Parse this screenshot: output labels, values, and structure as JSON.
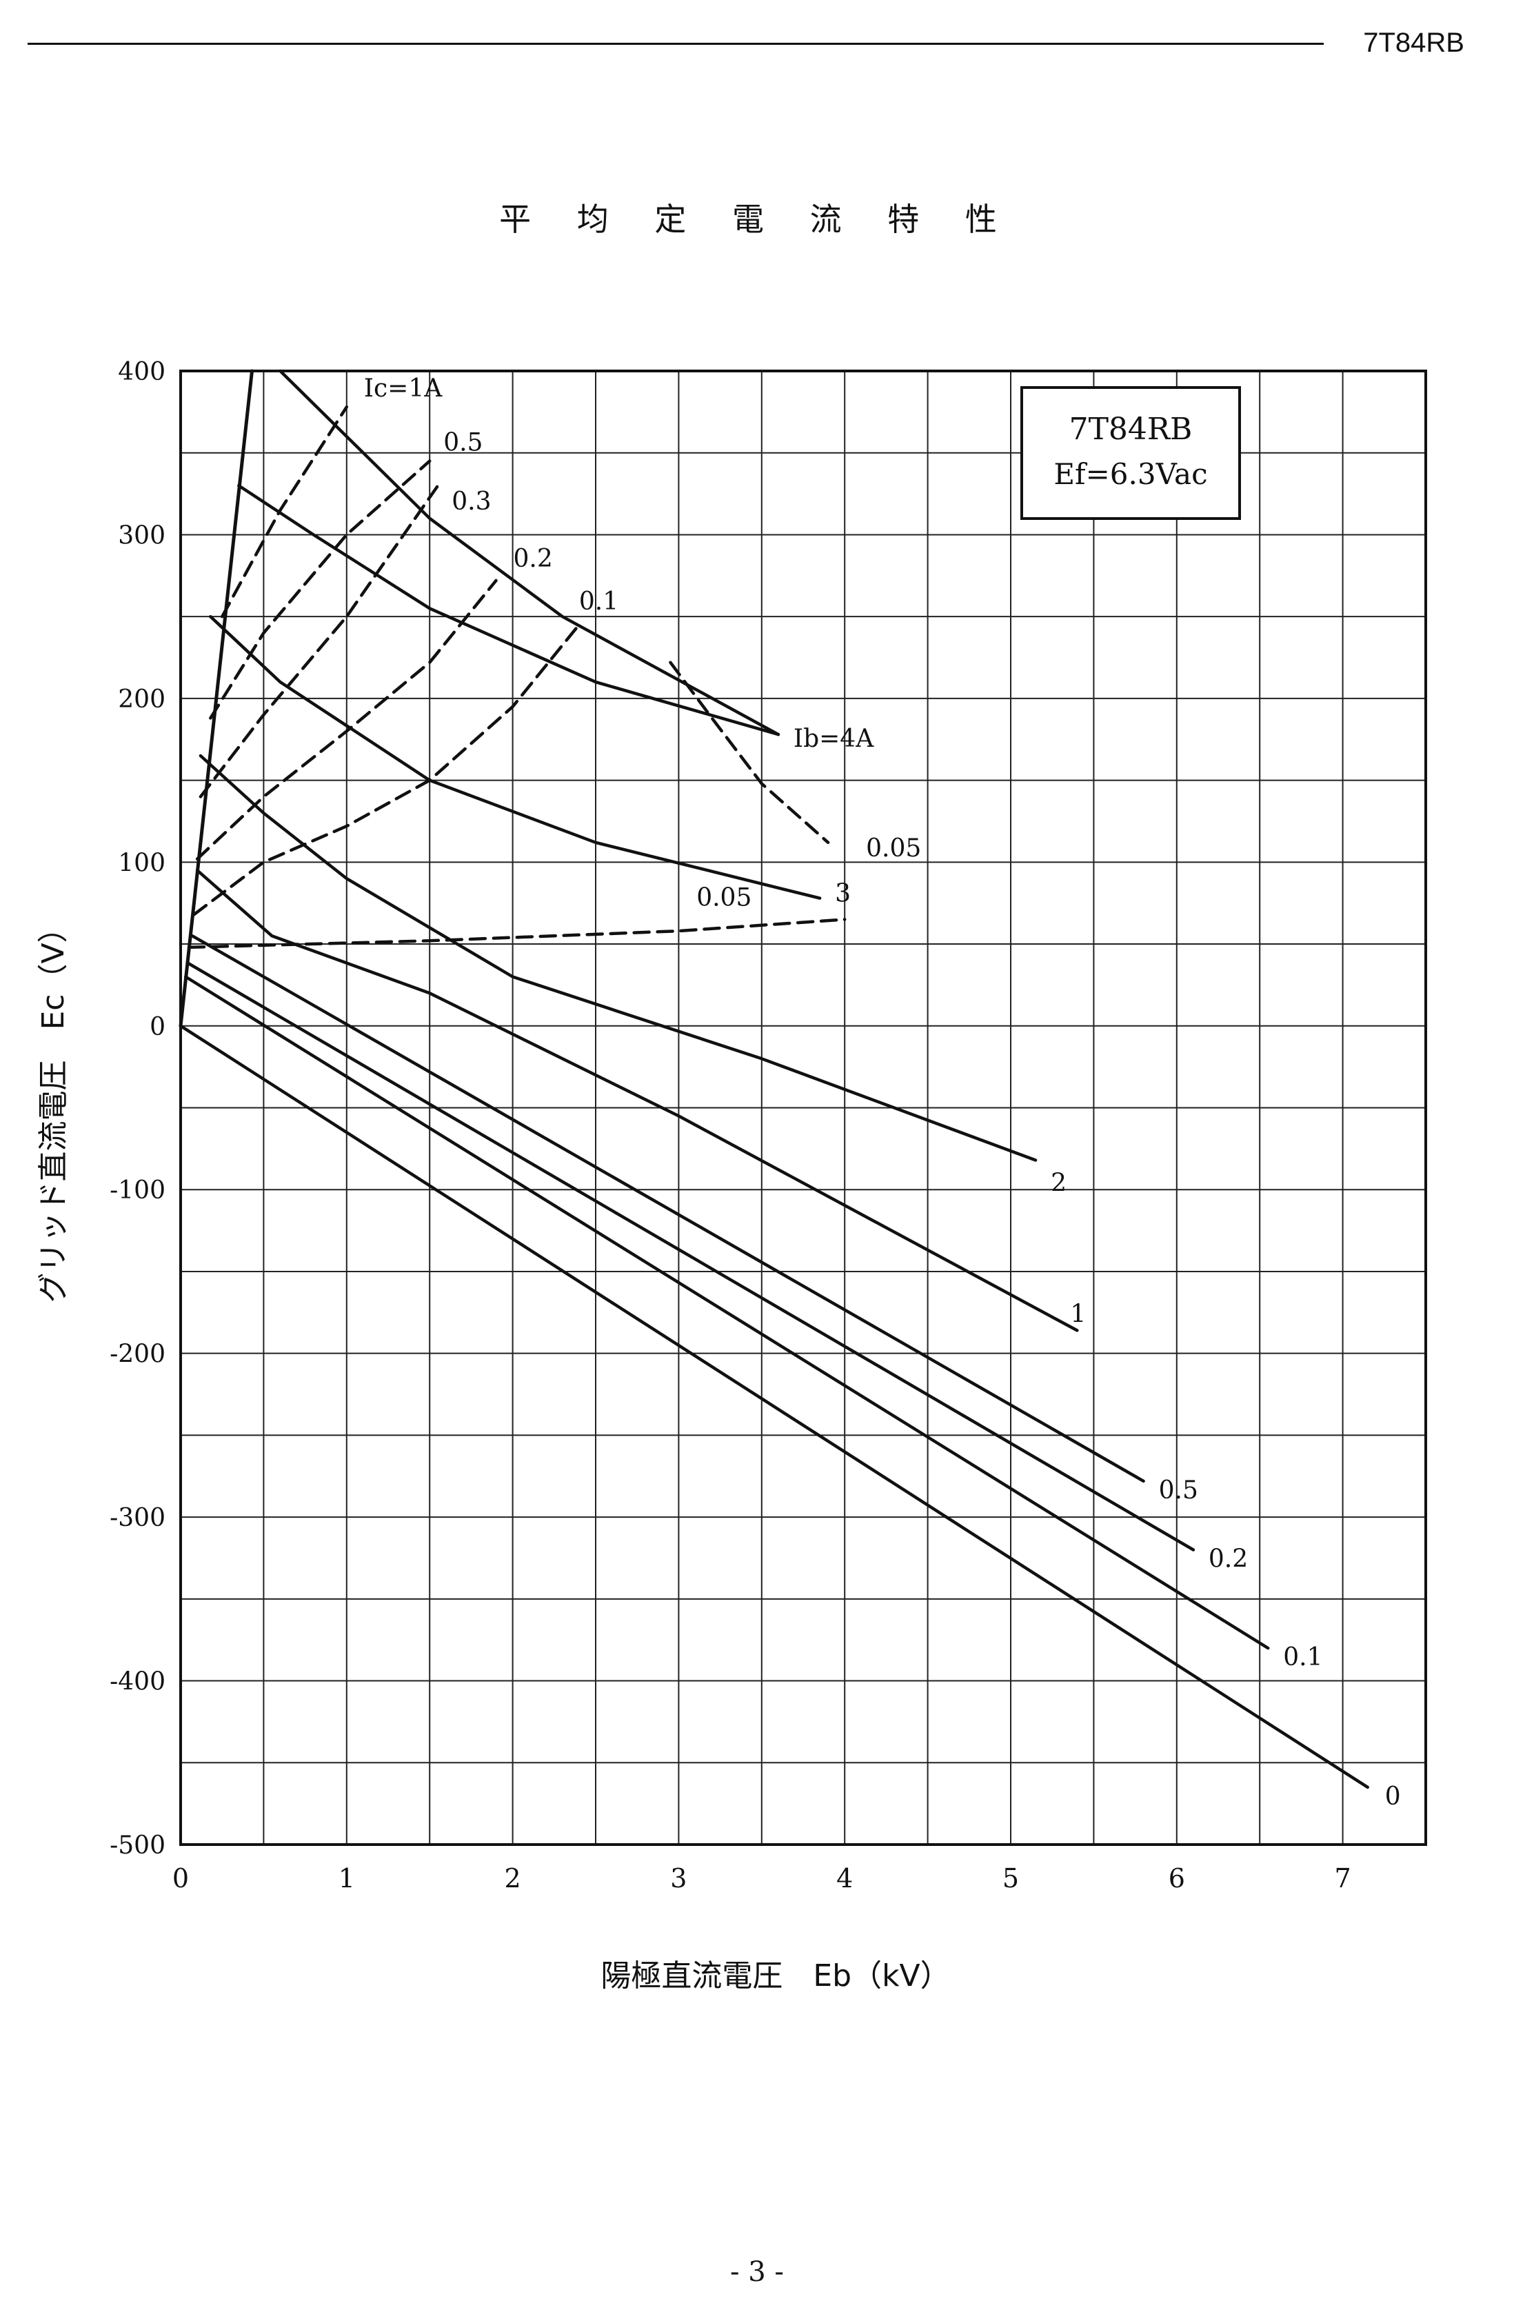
{
  "header": {
    "code": "7T84RB"
  },
  "footer": {
    "page": "- 3 -"
  },
  "chart_data": {
    "type": "line",
    "title": "平 均 定 電 流 特 性",
    "xlabel": "陽極直流電圧　Eb（kV）",
    "ylabel": "グリッド直流電圧　Ec（V）",
    "xlim": [
      0,
      7.5
    ],
    "ylim": [
      -500,
      400
    ],
    "xticks": [
      "0",
      "1",
      "2",
      "3",
      "4",
      "5",
      "6",
      "7"
    ],
    "yticks": [
      "400",
      "300",
      "200",
      "100",
      "0",
      "-100",
      "-200",
      "-300",
      "-400",
      "-500"
    ],
    "grid": true,
    "infobox": {
      "line1": "7T84RB",
      "line2": "Ef=6.3Vac"
    },
    "series": [
      {
        "name": "Ib=0 A",
        "label": "0",
        "kind": "plate",
        "points": [
          [
            0,
            0
          ],
          [
            7.15,
            -465
          ]
        ]
      },
      {
        "name": "Ib=0.1 A",
        "label": "0.1",
        "kind": "plate",
        "points": [
          [
            0.03,
            30
          ],
          [
            6.55,
            -380
          ]
        ]
      },
      {
        "name": "Ib=0.2 A",
        "label": "0.2",
        "kind": "plate",
        "points": [
          [
            0.05,
            38
          ],
          [
            6.1,
            -320
          ]
        ]
      },
      {
        "name": "Ib=0.5 A",
        "label": "0.5",
        "kind": "plate",
        "points": [
          [
            0.07,
            55
          ],
          [
            5.8,
            -278
          ]
        ]
      },
      {
        "name": "Ib=1 A",
        "label": "1",
        "kind": "plate",
        "points": [
          [
            0.1,
            95
          ],
          [
            0.55,
            55
          ],
          [
            1.5,
            20
          ],
          [
            3,
            -55
          ],
          [
            5.4,
            -186
          ]
        ]
      },
      {
        "name": "Ib=2 A",
        "label": "2",
        "kind": "plate",
        "points": [
          [
            0.12,
            165
          ],
          [
            0.5,
            130
          ],
          [
            1,
            90
          ],
          [
            2,
            30
          ],
          [
            3.5,
            -20
          ],
          [
            5.15,
            -82
          ]
        ]
      },
      {
        "name": "Ib=3 A",
        "label": "3",
        "kind": "plate",
        "points": [
          [
            0.18,
            250
          ],
          [
            0.6,
            210
          ],
          [
            1.5,
            150
          ],
          [
            2.5,
            112
          ],
          [
            3.85,
            78
          ]
        ]
      },
      {
        "name": "Ib=4 A",
        "label": "Ib=4A",
        "kind": "plate",
        "points": [
          [
            0.35,
            330
          ],
          [
            0.8,
            300
          ],
          [
            1.5,
            255
          ],
          [
            2.5,
            210
          ],
          [
            3.6,
            178
          ]
        ]
      },
      {
        "name": "Ib envelope",
        "label": "",
        "kind": "plate",
        "points": [
          [
            0.6,
            400
          ],
          [
            1,
            360
          ],
          [
            1.5,
            310
          ],
          [
            2.3,
            250
          ],
          [
            3.6,
            178
          ]
        ]
      },
      {
        "name": "Ic=0.05 A (low)",
        "label": "0.05",
        "kind": "grid",
        "points": [
          [
            0.05,
            48
          ],
          [
            1.5,
            52
          ],
          [
            3,
            58
          ],
          [
            4,
            65
          ]
        ]
      },
      {
        "name": "Ic=0.05 A (high)",
        "label": "0.05",
        "kind": "grid",
        "points": [
          [
            2.95,
            222
          ],
          [
            3.2,
            188
          ],
          [
            3.5,
            148
          ],
          [
            3.9,
            112
          ]
        ]
      },
      {
        "name": "Ic=0.1 A",
        "label": "0.1",
        "kind": "grid",
        "points": [
          [
            0.08,
            68
          ],
          [
            0.5,
            100
          ],
          [
            1,
            122
          ],
          [
            1.5,
            150
          ],
          [
            2,
            195
          ],
          [
            2.4,
            245
          ]
        ]
      },
      {
        "name": "Ic=0.2 A",
        "label": "0.2",
        "kind": "grid",
        "points": [
          [
            0.1,
            102
          ],
          [
            0.5,
            140
          ],
          [
            1,
            180
          ],
          [
            1.5,
            222
          ],
          [
            1.9,
            272
          ]
        ]
      },
      {
        "name": "Ic=0.3 A",
        "label": "0.3",
        "kind": "grid",
        "points": [
          [
            0.12,
            140
          ],
          [
            0.5,
            190
          ],
          [
            1,
            250
          ],
          [
            1.55,
            330
          ]
        ]
      },
      {
        "name": "Ic=0.5 A",
        "label": "0.5",
        "kind": "grid",
        "points": [
          [
            0.18,
            188
          ],
          [
            0.5,
            240
          ],
          [
            1,
            300
          ],
          [
            1.5,
            345
          ]
        ]
      },
      {
        "name": "Ic=1 A",
        "label": "Ic=1A",
        "kind": "grid",
        "points": [
          [
            0.25,
            250
          ],
          [
            0.6,
            315
          ],
          [
            1,
            378
          ]
        ]
      },
      {
        "name": "Ec=Eb line",
        "label": "",
        "kind": "limit",
        "points": [
          [
            0,
            0
          ],
          [
            0.43,
            400
          ]
        ]
      }
    ]
  }
}
